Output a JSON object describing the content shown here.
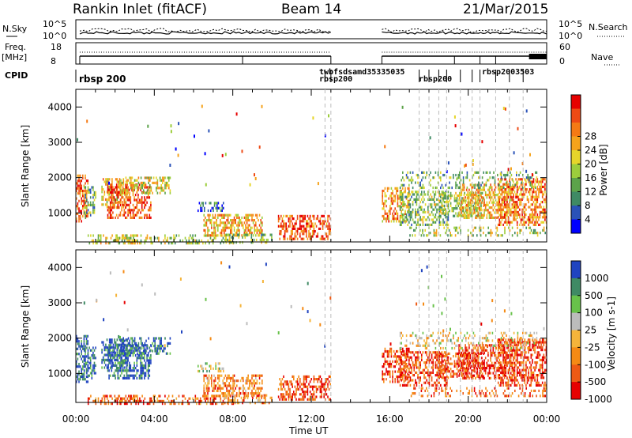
{
  "header": {
    "station": "Rankin Inlet (fitACF)",
    "beam": "Beam 14",
    "date": "21/Mar/2015"
  },
  "top_panels": {
    "nsky_label": "N.Sky",
    "nsky_ticks": [
      "10^5",
      "10^0"
    ],
    "nsearch_label": "N.Search",
    "freq_label_1": "Freq.",
    "freq_label_2": "[MHz]",
    "freq_ticks": [
      "18",
      "8"
    ],
    "nave_label": "Nave",
    "nave_ticks": [
      "60",
      "0"
    ],
    "cpid_label": "CPID",
    "cpid_main": "rbsp 200",
    "cpid_text_a": "twbfsdsamd35335035",
    "cpid_text_b": "rbsp200",
    "cpid_text_c": "rbsp200",
    "cpid_text_d": "rbsp2003503"
  },
  "colors": {
    "power_scale": [
      "#0000ff",
      "#2a52b8",
      "#3f8a64",
      "#5ca34a",
      "#9ccd3c",
      "#e6d52a",
      "#f5a31c",
      "#f57a14",
      "#ee4a14",
      "#e60000"
    ],
    "velocity_scale": [
      "#2044c0",
      "#3f8a64",
      "#68c24a",
      "#bcbcbc",
      "#f5b43a",
      "#f58a14",
      "#ee5a14",
      "#e60000"
    ]
  },
  "chart_data": [
    {
      "type": "heatmap",
      "title": "",
      "xlabel": "",
      "ylabel": "Slant Range [km]",
      "x_ticks": [
        "00:00",
        "04:00",
        "08:00",
        "12:00",
        "16:00",
        "20:00",
        "00:00"
      ],
      "y_ticks": [
        "1000",
        "2000",
        "3000",
        "4000"
      ],
      "ylim": [
        180,
        4500
      ],
      "colorbar_label": "Power [dB]",
      "colorbar_ticks": [
        "4",
        "8",
        "12",
        "16",
        "20",
        "24",
        "28"
      ],
      "data_gap_hours": [
        13.0,
        15.6
      ]
    },
    {
      "type": "heatmap",
      "title": "",
      "xlabel": "Time UT",
      "ylabel": "Slant Range [km]",
      "x_ticks": [
        "00:00",
        "04:00",
        "08:00",
        "12:00",
        "16:00",
        "20:00",
        "00:00"
      ],
      "y_ticks": [
        "1000",
        "2000",
        "3000",
        "4000"
      ],
      "ylim": [
        180,
        4500
      ],
      "colorbar_label": "Velocity [m s-1]",
      "colorbar_ticks": [
        "1000",
        "500",
        "100",
        "25",
        "-25",
        "-100",
        "-500",
        "-1000"
      ],
      "data_gap_hours": [
        13.0,
        15.6
      ]
    }
  ]
}
